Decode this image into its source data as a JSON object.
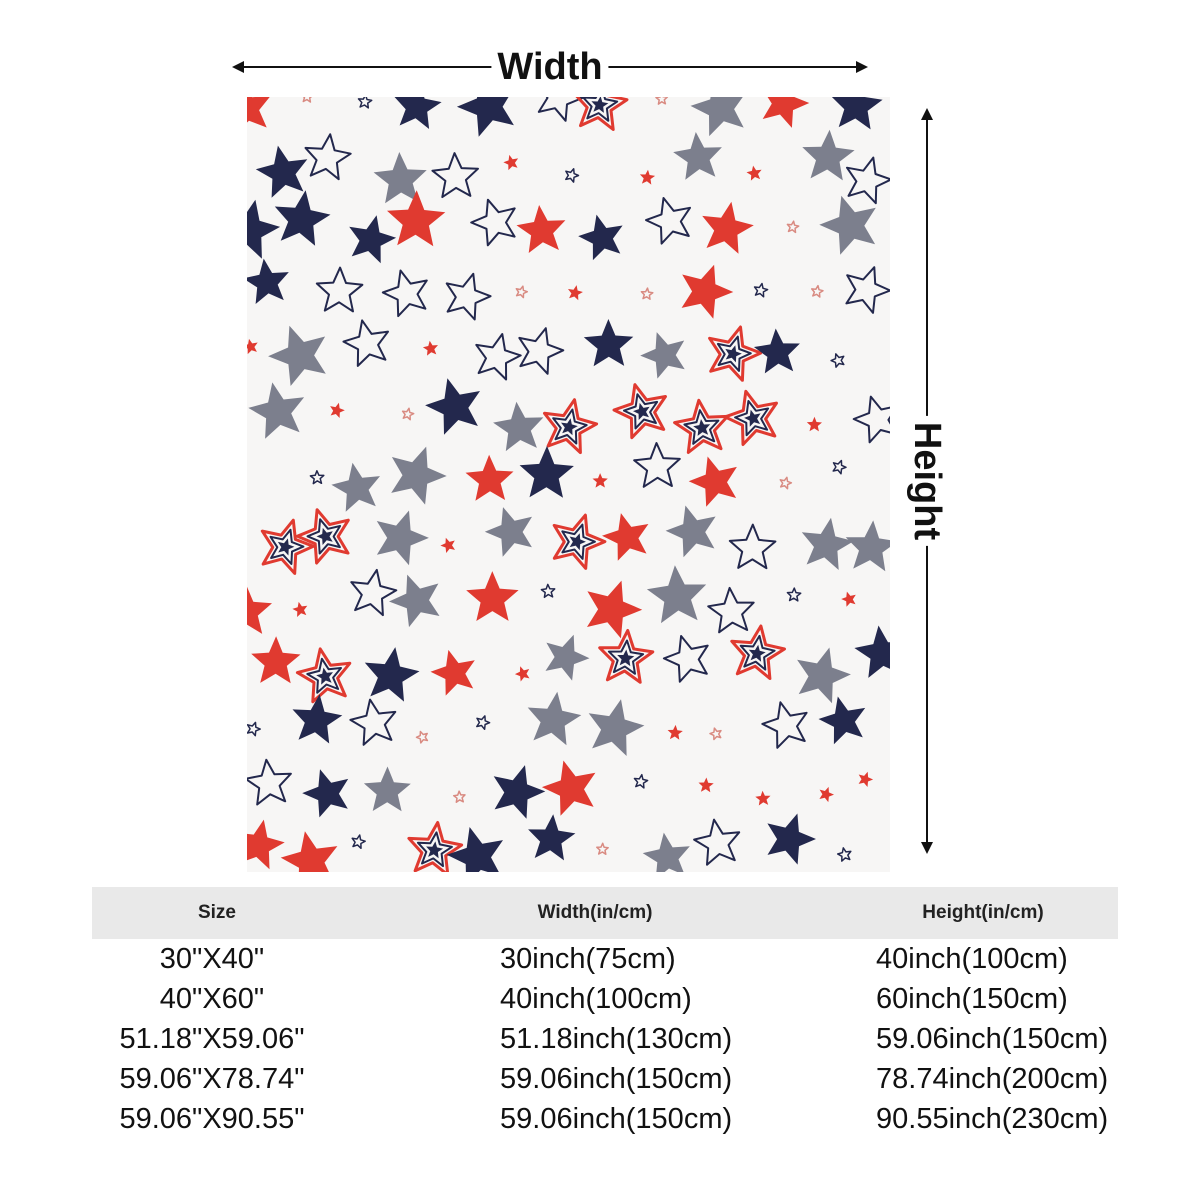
{
  "dimensions": {
    "width_label": "Width",
    "height_label": "Height"
  },
  "product_image": {
    "pattern": "star-pattern",
    "colors": {
      "background": "#f7f6f5",
      "red": "#e03a30",
      "navy": "#23284d",
      "gray": "#7c7f8d",
      "pink": "#d98b82"
    }
  },
  "size_table": {
    "headers": [
      "Size",
      "Width(in/cm)",
      "Height(in/cm)"
    ],
    "rows": [
      [
        "30\"X40\"",
        "30inch(75cm)",
        "40inch(100cm)"
      ],
      [
        "40\"X60\"",
        "40inch(100cm)",
        "60inch(150cm)"
      ],
      [
        "51.18\"X59.06\"",
        "51.18inch(130cm)",
        "59.06inch(150cm)"
      ],
      [
        "59.06\"X78.74\"",
        "59.06inch(150cm)",
        "78.74inch(200cm)"
      ],
      [
        "59.06\"X90.55\"",
        "59.06inch(150cm)",
        "90.55inch(230cm)"
      ]
    ]
  }
}
